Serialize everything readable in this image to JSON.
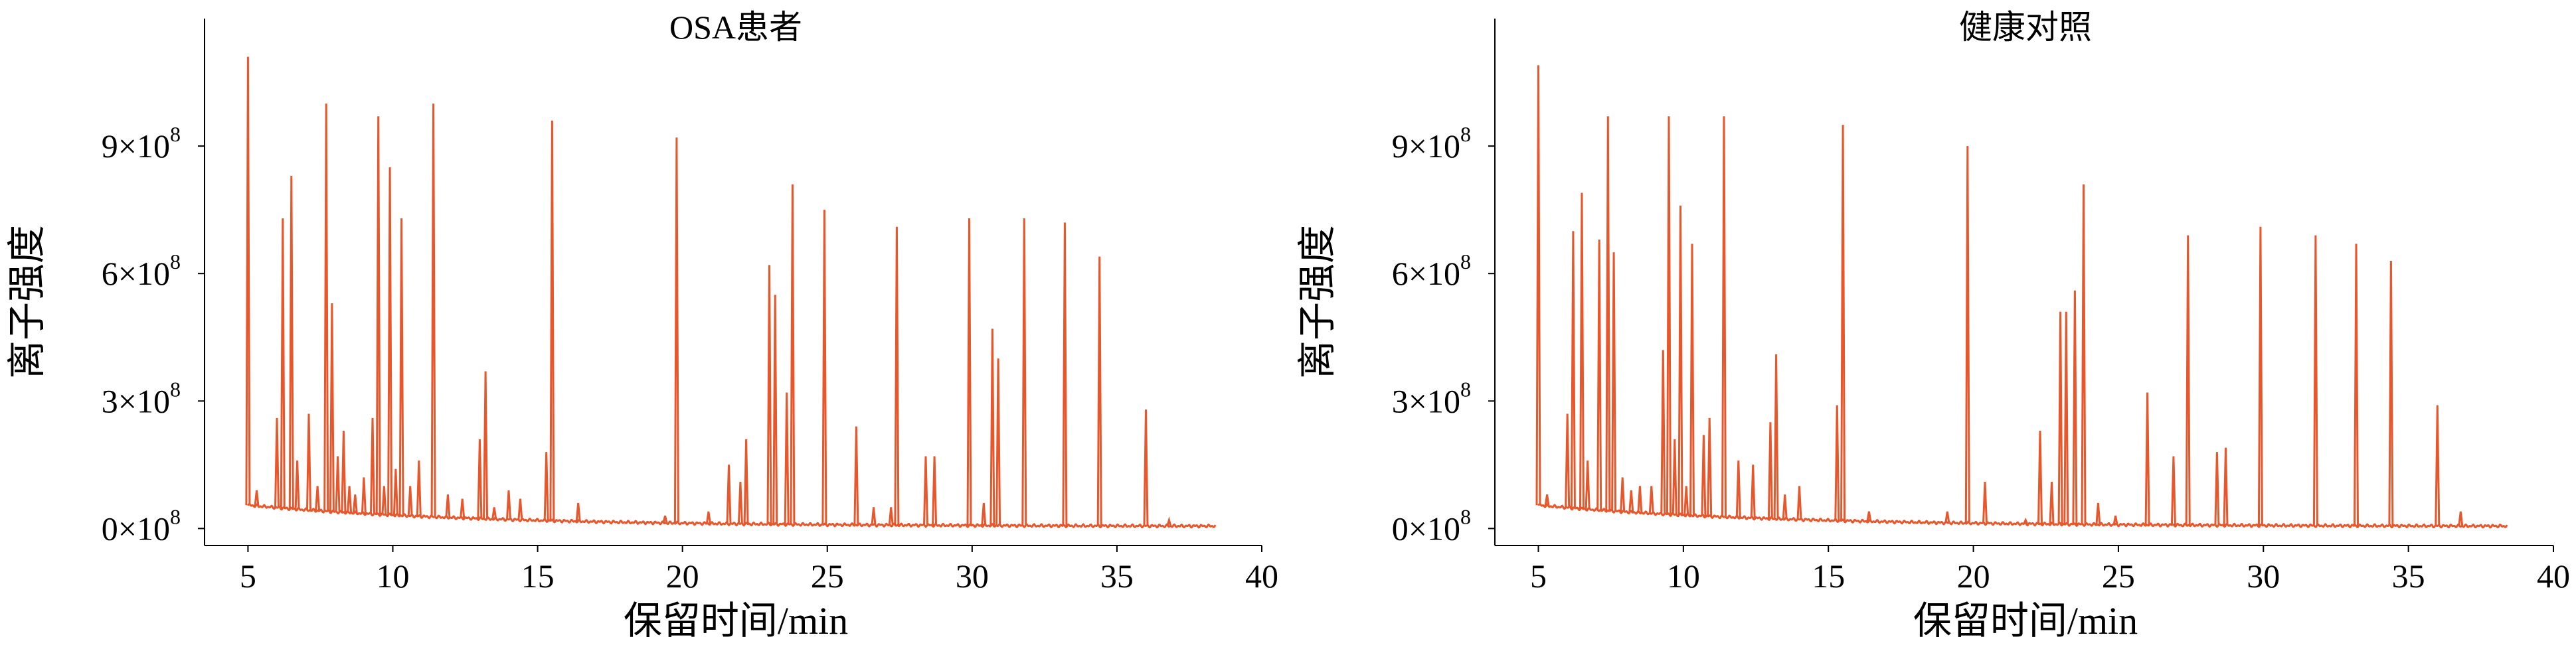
{
  "figure": {
    "chart_data": [
      {
        "type": "line",
        "title": "OSA患者",
        "xlabel": "保留时间/min",
        "ylabel": "离子强度",
        "xlim": [
          3.5,
          40
        ],
        "ylim": [
          -0.4,
          12.0
        ],
        "y_unit_note": "×10^8",
        "x_ticks": [
          "5",
          "10",
          "15",
          "20",
          "25",
          "30",
          "35",
          "40"
        ],
        "y_ticks": [
          {
            "mantissa": "0×10",
            "exp": "8"
          },
          {
            "mantissa": "3×10",
            "exp": "8"
          },
          {
            "mantissa": "6×10",
            "exp": "8"
          },
          {
            "mantissa": "9×10",
            "exp": "8"
          }
        ],
        "grid": false,
        "color": "#e8562b",
        "baseline": {
          "x_start": 5.0,
          "x_end": 38.4,
          "y_start": 0.55,
          "y_end": 0.05
        },
        "peaks": [
          [
            5.0,
            11.1
          ],
          [
            5.3,
            0.9
          ],
          [
            6.0,
            2.6
          ],
          [
            6.2,
            7.3
          ],
          [
            6.5,
            8.3
          ],
          [
            6.7,
            1.6
          ],
          [
            7.1,
            2.7
          ],
          [
            7.4,
            1.0
          ],
          [
            7.7,
            10.0
          ],
          [
            7.9,
            5.3
          ],
          [
            8.1,
            1.7
          ],
          [
            8.3,
            2.3
          ],
          [
            8.5,
            1.0
          ],
          [
            8.7,
            0.8
          ],
          [
            9.0,
            1.2
          ],
          [
            9.3,
            2.6
          ],
          [
            9.5,
            9.7
          ],
          [
            9.7,
            1.0
          ],
          [
            9.9,
            8.5
          ],
          [
            10.1,
            1.4
          ],
          [
            10.3,
            7.3
          ],
          [
            10.6,
            1.0
          ],
          [
            10.9,
            1.6
          ],
          [
            11.4,
            10.0
          ],
          [
            11.9,
            0.8
          ],
          [
            12.4,
            0.7
          ],
          [
            13.0,
            2.1
          ],
          [
            13.2,
            3.7
          ],
          [
            13.5,
            0.5
          ],
          [
            14.0,
            0.9
          ],
          [
            14.4,
            0.7
          ],
          [
            15.3,
            1.8
          ],
          [
            15.5,
            9.6
          ],
          [
            16.4,
            0.6
          ],
          [
            19.4,
            0.3
          ],
          [
            19.8,
            9.2
          ],
          [
            20.9,
            0.4
          ],
          [
            21.6,
            1.5
          ],
          [
            22.0,
            1.1
          ],
          [
            22.2,
            2.1
          ],
          [
            23.0,
            6.2
          ],
          [
            23.2,
            5.5
          ],
          [
            23.6,
            3.2
          ],
          [
            23.8,
            8.1
          ],
          [
            24.9,
            7.5
          ],
          [
            26.0,
            2.4
          ],
          [
            26.6,
            0.5
          ],
          [
            27.2,
            0.5
          ],
          [
            27.4,
            7.1
          ],
          [
            28.4,
            1.7
          ],
          [
            28.7,
            1.7
          ],
          [
            29.9,
            7.3
          ],
          [
            30.4,
            0.6
          ],
          [
            30.7,
            4.7
          ],
          [
            30.9,
            4.0
          ],
          [
            31.8,
            7.3
          ],
          [
            33.2,
            7.2
          ],
          [
            34.4,
            6.4
          ],
          [
            36.0,
            2.8
          ],
          [
            36.8,
            0.2
          ]
        ]
      },
      {
        "type": "line",
        "title": "健康对照",
        "xlabel": "保留时间/min",
        "ylabel": "离子强度",
        "xlim": [
          3.5,
          40
        ],
        "ylim": [
          -0.4,
          12.0
        ],
        "y_unit_note": "×10^8",
        "x_ticks": [
          "5",
          "10",
          "15",
          "20",
          "25",
          "30",
          "35",
          "40"
        ],
        "y_ticks": [
          {
            "mantissa": "0×10",
            "exp": "8"
          },
          {
            "mantissa": "3×10",
            "exp": "8"
          },
          {
            "mantissa": "6×10",
            "exp": "8"
          },
          {
            "mantissa": "9×10",
            "exp": "8"
          }
        ],
        "grid": false,
        "color": "#e8562b",
        "baseline": {
          "x_start": 5.0,
          "x_end": 38.4,
          "y_start": 0.55,
          "y_end": 0.05
        },
        "peaks": [
          [
            5.0,
            10.9
          ],
          [
            5.3,
            0.8
          ],
          [
            6.0,
            2.7
          ],
          [
            6.2,
            7.0
          ],
          [
            6.5,
            7.9
          ],
          [
            6.7,
            1.6
          ],
          [
            7.1,
            6.8
          ],
          [
            7.4,
            9.7
          ],
          [
            7.6,
            6.5
          ],
          [
            7.9,
            1.2
          ],
          [
            8.2,
            0.9
          ],
          [
            8.5,
            1.0
          ],
          [
            8.9,
            1.0
          ],
          [
            9.3,
            4.2
          ],
          [
            9.5,
            9.7
          ],
          [
            9.7,
            2.1
          ],
          [
            9.9,
            7.6
          ],
          [
            10.1,
            1.0
          ],
          [
            10.3,
            6.7
          ],
          [
            10.7,
            2.2
          ],
          [
            10.9,
            2.6
          ],
          [
            11.4,
            9.7
          ],
          [
            11.9,
            1.6
          ],
          [
            12.4,
            1.5
          ],
          [
            13.0,
            2.5
          ],
          [
            13.2,
            4.1
          ],
          [
            13.5,
            0.8
          ],
          [
            14.0,
            1.0
          ],
          [
            15.3,
            2.9
          ],
          [
            15.5,
            9.5
          ],
          [
            16.4,
            0.4
          ],
          [
            19.1,
            0.4
          ],
          [
            19.8,
            9.0
          ],
          [
            20.4,
            1.1
          ],
          [
            21.8,
            0.2
          ],
          [
            22.3,
            2.3
          ],
          [
            22.7,
            1.1
          ],
          [
            23.0,
            5.1
          ],
          [
            23.2,
            5.1
          ],
          [
            23.5,
            5.6
          ],
          [
            23.8,
            8.1
          ],
          [
            24.3,
            0.6
          ],
          [
            24.9,
            0.3
          ],
          [
            26.0,
            3.2
          ],
          [
            26.9,
            1.7
          ],
          [
            27.4,
            6.9
          ],
          [
            28.4,
            1.8
          ],
          [
            28.7,
            1.9
          ],
          [
            29.9,
            7.1
          ],
          [
            31.8,
            6.9
          ],
          [
            33.2,
            6.7
          ],
          [
            34.4,
            6.3
          ],
          [
            36.0,
            2.9
          ],
          [
            36.8,
            0.4
          ]
        ]
      }
    ]
  }
}
